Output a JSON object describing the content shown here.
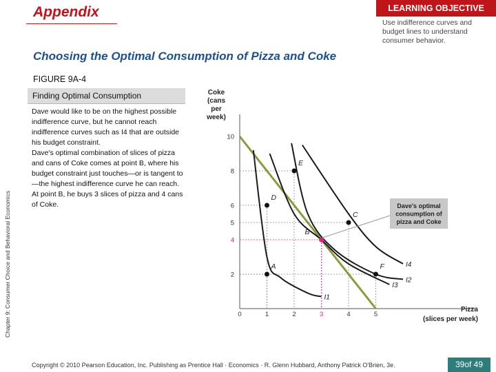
{
  "header": {
    "appendix_title": "Appendix",
    "learning_objective_label": "LEARNING OBJECTIVE",
    "learning_objective_text": "Use indifference curves and budget lines to understand consumer behavior.",
    "main_title": "Choosing the Optimal Consumption of Pizza and Coke",
    "figure_label": "FIGURE 9A-4"
  },
  "side_label": "Chapter 9: Consumer Choice and Behavioral Economics",
  "figure": {
    "title": "Finding Optimal Consumption",
    "paragraph_1": "Dave would like to be on the highest possible indifference curve, but he cannot reach indifference curves such as I4 that are outside his budget constraint.",
    "paragraph_2": "Dave's optimal combination of slices of pizza and cans of Coke comes at point B, where his budget constraint just touches—or is tangent to—the highest indifference curve he can reach.",
    "paragraph_3": "At point B, he buys 3 slices of pizza and 4 cans of Coke."
  },
  "chart_data": {
    "type": "line",
    "ylabel": "Coke (cans per week)",
    "xlabel": "Pizza (slices per week)",
    "x_ticks": [
      "0",
      "1",
      "2",
      "3",
      "4",
      "5"
    ],
    "y_ticks": [
      "2",
      "4",
      "5",
      "6",
      "8",
      "10"
    ],
    "highlight_tick_x": "3",
    "highlight_tick_y": "4",
    "xlim": [
      0,
      6
    ],
    "ylim": [
      0,
      11
    ],
    "budget_line": {
      "x": [
        0,
        5
      ],
      "y": [
        10,
        0
      ]
    },
    "indifference_curves": [
      {
        "name": "I1",
        "points": [
          [
            0.5,
            9.2
          ],
          [
            1,
            3
          ],
          [
            1.5,
            1.8
          ],
          [
            2.5,
            0.9
          ],
          [
            3,
            0.7
          ]
        ]
      },
      {
        "name": "I3",
        "points": [
          [
            1.1,
            9.0
          ],
          [
            2,
            5.5
          ],
          [
            3,
            4
          ],
          [
            4,
            2.6
          ],
          [
            5.5,
            1.4
          ]
        ]
      },
      {
        "name": "I4",
        "points": [
          [
            2.3,
            9.5
          ],
          [
            4,
            5.5
          ],
          [
            5,
            3.6
          ],
          [
            6,
            2.6
          ]
        ]
      },
      {
        "name": "I2",
        "points": [
          [
            1.9,
            9.6
          ],
          [
            2.5,
            5.5
          ],
          [
            3.5,
            3.4
          ],
          [
            5,
            2
          ],
          [
            6,
            1.7
          ]
        ]
      }
    ],
    "points": [
      {
        "label": "E",
        "x": 2,
        "y": 8,
        "color": "#111111"
      },
      {
        "label": "D",
        "x": 1,
        "y": 6,
        "color": "#111111"
      },
      {
        "label": "C",
        "x": 4,
        "y": 5,
        "color": "#111111"
      },
      {
        "label": "B",
        "x": 3,
        "y": 4,
        "color": "#e0208a"
      },
      {
        "label": "A",
        "x": 1,
        "y": 2,
        "color": "#111111"
      },
      {
        "label": "F",
        "x": 5,
        "y": 2,
        "color": "#111111"
      }
    ],
    "annotation": "Dave's optimal consumption of pizza and Coke",
    "colors": {
      "budget": "#8a9a3c",
      "curve": "#1a1a1a",
      "optimum": "#e0208a",
      "annotation_bg": "#c8c8c8"
    }
  },
  "footer": {
    "copyright": "Copyright © 2010 Pearson Education, Inc. Publishing as Prentice Hall · Economics · R. Glenn Hubbard, Anthony Patrick O'Brien, 3e.",
    "page_current": "39",
    "page_of": "of",
    "page_total": "49"
  }
}
